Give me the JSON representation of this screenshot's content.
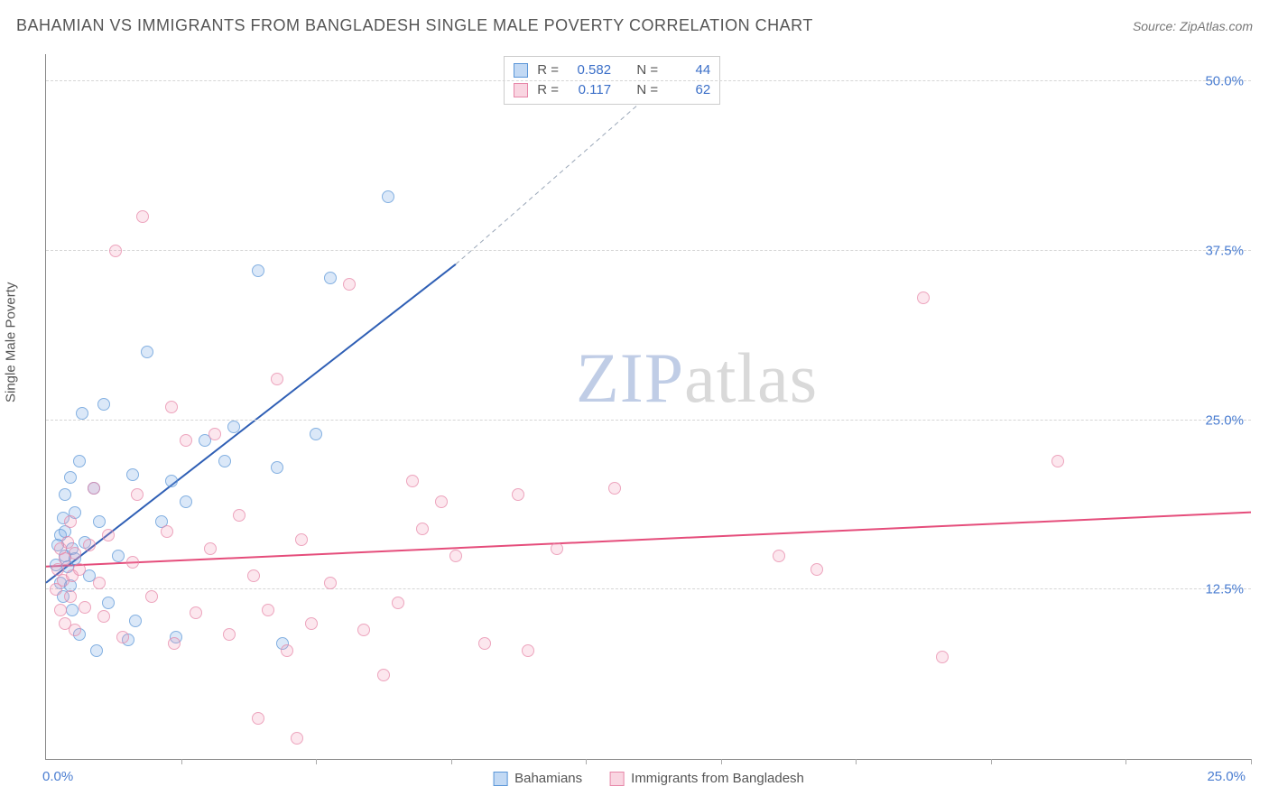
{
  "header": {
    "title": "BAHAMIAN VS IMMIGRANTS FROM BANGLADESH SINGLE MALE POVERTY CORRELATION CHART",
    "source_prefix": "Source: ",
    "source_name": "ZipAtlas.com"
  },
  "chart": {
    "type": "scatter",
    "ylabel": "Single Male Poverty",
    "background_color": "#ffffff",
    "grid_color": "#d5d5d5",
    "axis_color": "#888888",
    "tick_label_color": "#4a7dd1",
    "label_fontsize": 15,
    "title_fontsize": 18,
    "marker_radius": 7,
    "xlim": [
      0,
      25
    ],
    "ylim": [
      0,
      52
    ],
    "xtick_positions": [
      0,
      2.8,
      5.6,
      8.4,
      11.2,
      14.0,
      16.8,
      19.6,
      22.4,
      25.0
    ],
    "x_origin_label": "0.0%",
    "x_max_label": "25.0%",
    "ygrid": [
      {
        "v": 12.5,
        "label": "12.5%"
      },
      {
        "v": 25.0,
        "label": "25.0%"
      },
      {
        "v": 37.5,
        "label": "37.5%"
      },
      {
        "v": 50.0,
        "label": "50.0%"
      }
    ],
    "watermark": {
      "zip": "ZIP",
      "atlas": "atlas",
      "fontsize": 78,
      "color_zip": "#c0cde6",
      "color_atlas": "#d9d9d9"
    },
    "series": [
      {
        "name": "Bahamians",
        "color_fill": "rgba(120,170,230,0.35)",
        "color_stroke": "#5a96d8",
        "trend_color": "#2f5fb5",
        "trend_width": 2,
        "trend": {
          "x0": 0,
          "y0": 13.0,
          "x1": 8.5,
          "y1": 36.5,
          "dash_x1": 13.0,
          "dash_y1": 50.5
        },
        "r_label": "R =",
        "r_value": "0.582",
        "n_label": "N =",
        "n_value": "44",
        "points": [
          [
            0.2,
            14.3
          ],
          [
            0.25,
            15.8
          ],
          [
            0.3,
            13.0
          ],
          [
            0.3,
            16.5
          ],
          [
            0.35,
            12.0
          ],
          [
            0.35,
            17.8
          ],
          [
            0.4,
            15.0
          ],
          [
            0.4,
            16.8
          ],
          [
            0.4,
            19.5
          ],
          [
            0.45,
            14.2
          ],
          [
            0.5,
            12.8
          ],
          [
            0.5,
            20.8
          ],
          [
            0.55,
            15.5
          ],
          [
            0.55,
            11.0
          ],
          [
            0.6,
            14.8
          ],
          [
            0.6,
            18.2
          ],
          [
            0.7,
            9.2
          ],
          [
            0.7,
            22.0
          ],
          [
            0.75,
            25.5
          ],
          [
            0.8,
            16.0
          ],
          [
            0.9,
            13.5
          ],
          [
            1.0,
            20.0
          ],
          [
            1.05,
            8.0
          ],
          [
            1.1,
            17.5
          ],
          [
            1.2,
            26.2
          ],
          [
            1.3,
            11.5
          ],
          [
            1.5,
            15.0
          ],
          [
            1.7,
            8.8
          ],
          [
            1.8,
            21.0
          ],
          [
            1.85,
            10.2
          ],
          [
            2.1,
            30.0
          ],
          [
            2.4,
            17.5
          ],
          [
            2.6,
            20.5
          ],
          [
            2.7,
            9.0
          ],
          [
            2.9,
            19.0
          ],
          [
            3.3,
            23.5
          ],
          [
            3.7,
            22.0
          ],
          [
            3.9,
            24.5
          ],
          [
            4.4,
            36.0
          ],
          [
            4.8,
            21.5
          ],
          [
            4.9,
            8.5
          ],
          [
            5.6,
            24.0
          ],
          [
            5.9,
            35.5
          ],
          [
            7.1,
            41.5
          ]
        ]
      },
      {
        "name": "Immigrants from Bangladesh",
        "color_fill": "rgba(240,150,180,0.30)",
        "color_stroke": "#e786a8",
        "trend_color": "#e54d7b",
        "trend_width": 2,
        "trend": {
          "x0": 0,
          "y0": 14.2,
          "x1": 25,
          "y1": 18.2
        },
        "r_label": "R =",
        "r_value": "0.117",
        "n_label": "N =",
        "n_value": "62",
        "points": [
          [
            0.2,
            12.5
          ],
          [
            0.25,
            14.0
          ],
          [
            0.3,
            11.0
          ],
          [
            0.3,
            15.5
          ],
          [
            0.35,
            13.2
          ],
          [
            0.4,
            10.0
          ],
          [
            0.4,
            14.8
          ],
          [
            0.45,
            16.0
          ],
          [
            0.5,
            12.0
          ],
          [
            0.5,
            17.5
          ],
          [
            0.55,
            13.5
          ],
          [
            0.6,
            15.2
          ],
          [
            0.6,
            9.5
          ],
          [
            0.7,
            14.0
          ],
          [
            0.8,
            11.2
          ],
          [
            0.9,
            15.8
          ],
          [
            1.0,
            20.0
          ],
          [
            1.1,
            13.0
          ],
          [
            1.2,
            10.5
          ],
          [
            1.3,
            16.5
          ],
          [
            1.45,
            37.5
          ],
          [
            1.6,
            9.0
          ],
          [
            1.8,
            14.5
          ],
          [
            1.9,
            19.5
          ],
          [
            2.0,
            40.0
          ],
          [
            2.2,
            12.0
          ],
          [
            2.5,
            16.8
          ],
          [
            2.6,
            26.0
          ],
          [
            2.65,
            8.5
          ],
          [
            2.9,
            23.5
          ],
          [
            3.1,
            10.8
          ],
          [
            3.4,
            15.5
          ],
          [
            3.5,
            24.0
          ],
          [
            3.8,
            9.2
          ],
          [
            4.0,
            18.0
          ],
          [
            4.3,
            13.5
          ],
          [
            4.4,
            3.0
          ],
          [
            4.6,
            11.0
          ],
          [
            4.8,
            28.0
          ],
          [
            5.0,
            8.0
          ],
          [
            5.2,
            1.5
          ],
          [
            5.3,
            16.2
          ],
          [
            5.5,
            10.0
          ],
          [
            5.9,
            13.0
          ],
          [
            6.3,
            35.0
          ],
          [
            6.6,
            9.5
          ],
          [
            7.0,
            6.2
          ],
          [
            7.3,
            11.5
          ],
          [
            7.6,
            20.5
          ],
          [
            7.8,
            17.0
          ],
          [
            8.2,
            19.0
          ],
          [
            8.5,
            15.0
          ],
          [
            9.1,
            8.5
          ],
          [
            9.8,
            19.5
          ],
          [
            10.0,
            8.0
          ],
          [
            10.6,
            15.5
          ],
          [
            11.8,
            20.0
          ],
          [
            15.2,
            15.0
          ],
          [
            16.0,
            14.0
          ],
          [
            18.2,
            34.0
          ],
          [
            18.6,
            7.5
          ],
          [
            21.0,
            22.0
          ]
        ]
      }
    ],
    "bottom_legend": [
      {
        "series": 0,
        "label": "Bahamians"
      },
      {
        "series": 1,
        "label": "Immigrants from Bangladesh"
      }
    ]
  }
}
